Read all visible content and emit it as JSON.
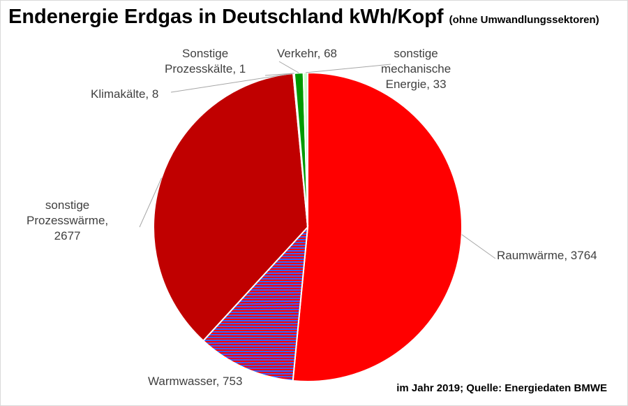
{
  "chart_data": {
    "type": "pie",
    "title": "Endenergie Erdgas in Deutschland kWh/Kopf",
    "subtitle": "(ohne Umwandlungssektoren)",
    "start_angle": "top, clockwise",
    "slices": [
      {
        "label": "Raumwärme",
        "value": 3764,
        "color": "#ff0000"
      },
      {
        "label": "Warmwasser",
        "value": 753,
        "color": "#ff0000",
        "pattern": "horizontal stripes red/blue",
        "color2": "#3366ff"
      },
      {
        "label": "sonstige Prozesswärme",
        "value": 2677,
        "color": "#c00000"
      },
      {
        "label": "Klimakälte",
        "value": 8,
        "color": "#c00000"
      },
      {
        "label": "Sonstige Prozesskälte",
        "value": 1,
        "color": "#c00000"
      },
      {
        "label": "Verkehr",
        "value": 68,
        "color": "#009900"
      },
      {
        "label": "sonstige mechanische Energie",
        "value": 33,
        "color": "#ccffcc"
      }
    ],
    "data_labels": [
      [
        "Raumwärme, 3764"
      ],
      [
        "Warmwasser, 753"
      ],
      [
        "sonstige",
        "Prozesswärme,",
        "2677"
      ],
      [
        "Klimakälte, 8"
      ],
      [
        "Sonstige",
        "Prozesskälte, 1"
      ],
      [
        "Verkehr, 68"
      ],
      [
        "sonstige",
        "mechanische",
        "Energie, 33"
      ]
    ],
    "annotation": "im Jahr 2019; Quelle: Energiedaten BMWE"
  }
}
